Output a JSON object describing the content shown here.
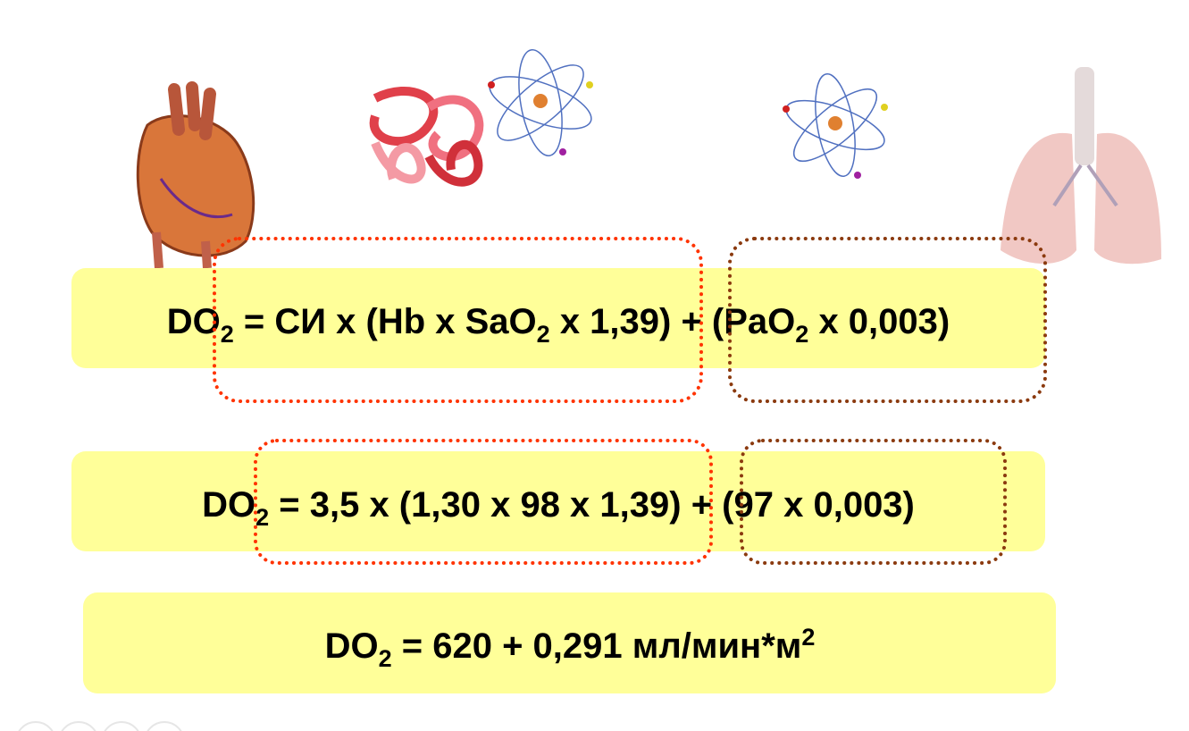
{
  "formulas": [
    {
      "parts": [
        "DO",
        "2",
        " = СИ x (Hb x SaO",
        "2",
        " x 1,39) + (PaO",
        "2",
        " x 0,003)"
      ]
    },
    {
      "parts": [
        "DO",
        "2",
        " = 3,5 x (1,30 x 98 x 1,39) + (97 x 0,003)"
      ]
    },
    {
      "parts": [
        "DO",
        "2",
        " = 620 + 0,291 мл/мин*м",
        "2"
      ]
    }
  ]
}
